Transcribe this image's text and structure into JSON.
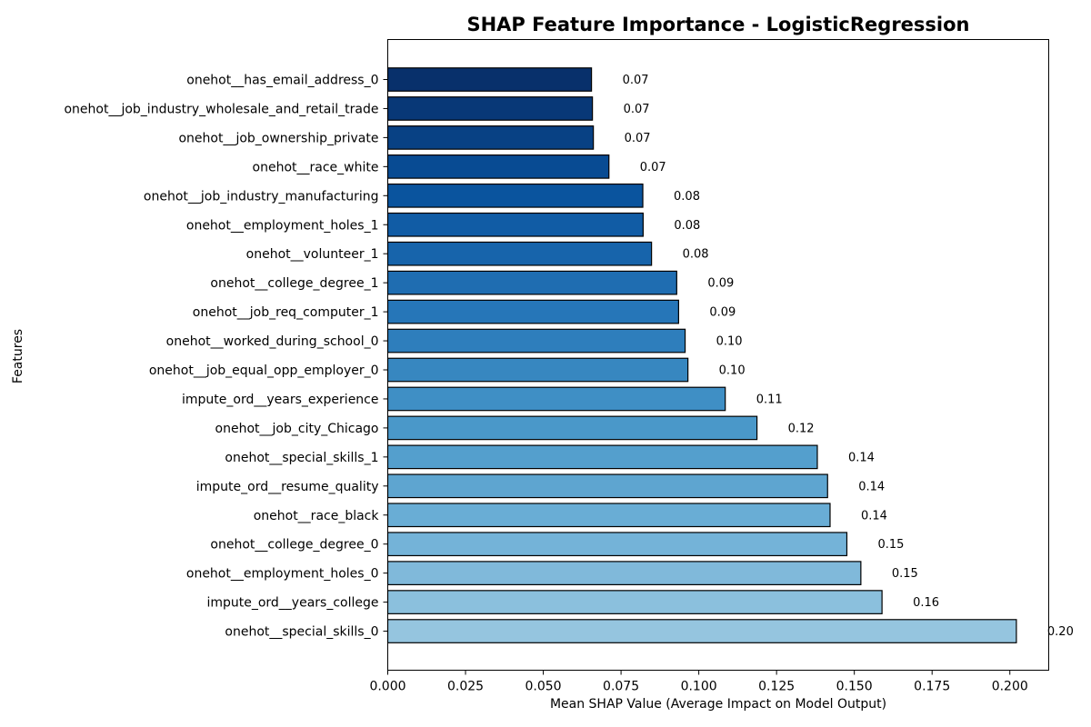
{
  "chart_data": {
    "type": "bar",
    "orientation": "horizontal",
    "title": "SHAP Feature Importance - LogisticRegression",
    "xlabel": "Mean SHAP Value (Average Impact on Model Output)",
    "ylabel": "Features",
    "xlim": [
      0,
      0.2125
    ],
    "xticks": [
      0.0,
      0.025,
      0.05,
      0.075,
      0.1,
      0.125,
      0.15,
      0.175,
      0.2
    ],
    "xtick_labels": [
      "0.000",
      "0.025",
      "0.050",
      "0.075",
      "0.100",
      "0.125",
      "0.150",
      "0.175",
      "0.200"
    ],
    "grid": false,
    "categories": [
      "onehot__has_email_address_0",
      "onehot__job_industry_wholesale_and_retail_trade",
      "onehot__job_ownership_private",
      "onehot__race_white",
      "onehot__job_industry_manufacturing",
      "onehot__employment_holes_1",
      "onehot__volunteer_1",
      "onehot__college_degree_1",
      "onehot__job_req_computer_1",
      "onehot__worked_during_school_0",
      "onehot__job_equal_opp_employer_0",
      "impute_ord__years_experience",
      "onehot__job_city_Chicago",
      "onehot__special_skills_1",
      "impute_ord__resume_quality",
      "onehot__race_black",
      "onehot__college_degree_0",
      "onehot__employment_holes_0",
      "impute_ord__years_college",
      "onehot__special_skills_0"
    ],
    "values": [
      0.0655,
      0.0658,
      0.0661,
      0.0711,
      0.082,
      0.0821,
      0.0848,
      0.0929,
      0.0935,
      0.0956,
      0.0965,
      0.1085,
      0.1187,
      0.1381,
      0.1414,
      0.1422,
      0.1476,
      0.1521,
      0.1589,
      0.2021
    ],
    "data_labels": [
      "0.07",
      "0.07",
      "0.07",
      "0.07",
      "0.08",
      "0.08",
      "0.08",
      "0.09",
      "0.09",
      "0.10",
      "0.10",
      "0.11",
      "0.12",
      "0.14",
      "0.14",
      "0.14",
      "0.15",
      "0.15",
      "0.16",
      "0.20"
    ],
    "colors": [
      "#08306b",
      "#083877",
      "#084184",
      "#084b93",
      "#0a549e",
      "#115ca5",
      "#1764ab",
      "#1f6db1",
      "#2676b8",
      "#2e7ebc",
      "#3787c0",
      "#3f8fc5",
      "#4a98c9",
      "#549fcd",
      "#5ea5d0",
      "#69add5",
      "#74b3d8",
      "#80b9da",
      "#8bc0dd",
      "#95c5df"
    ]
  }
}
